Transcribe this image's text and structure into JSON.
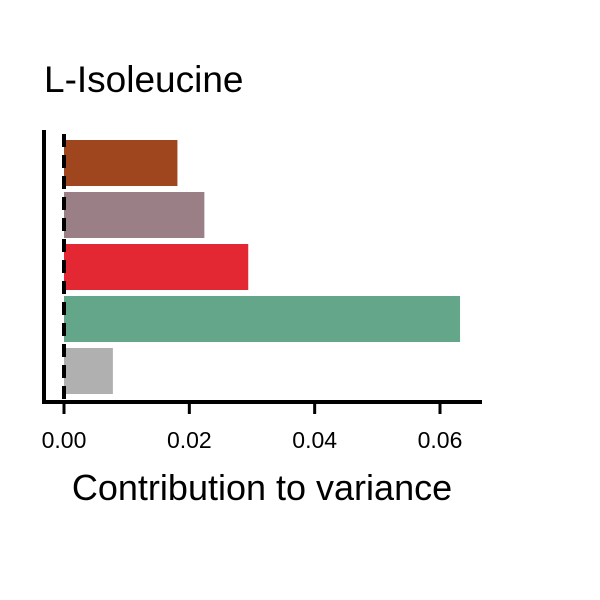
{
  "chart_data": {
    "type": "bar",
    "orientation": "horizontal",
    "title": "L-Isoleucine",
    "xlabel": "Contribution to variance",
    "ylabel": "",
    "xlim": [
      -0.003,
      0.066
    ],
    "xticks": [
      0.0,
      0.02,
      0.04,
      0.06
    ],
    "xtick_labels": [
      "0.00",
      "0.02",
      "0.04",
      "0.06"
    ],
    "reference_line": {
      "x": 0.0,
      "style": "dashed"
    },
    "grid": false,
    "legend": "none",
    "bars": [
      {
        "value": 0.0181,
        "color": "#a0461f"
      },
      {
        "value": 0.0224,
        "color": "#9b7f86"
      },
      {
        "value": 0.0294,
        "color": "#e32733"
      },
      {
        "value": 0.0632,
        "color": "#63a68a"
      },
      {
        "value": 0.0078,
        "color": "#b0b0b0"
      }
    ]
  }
}
